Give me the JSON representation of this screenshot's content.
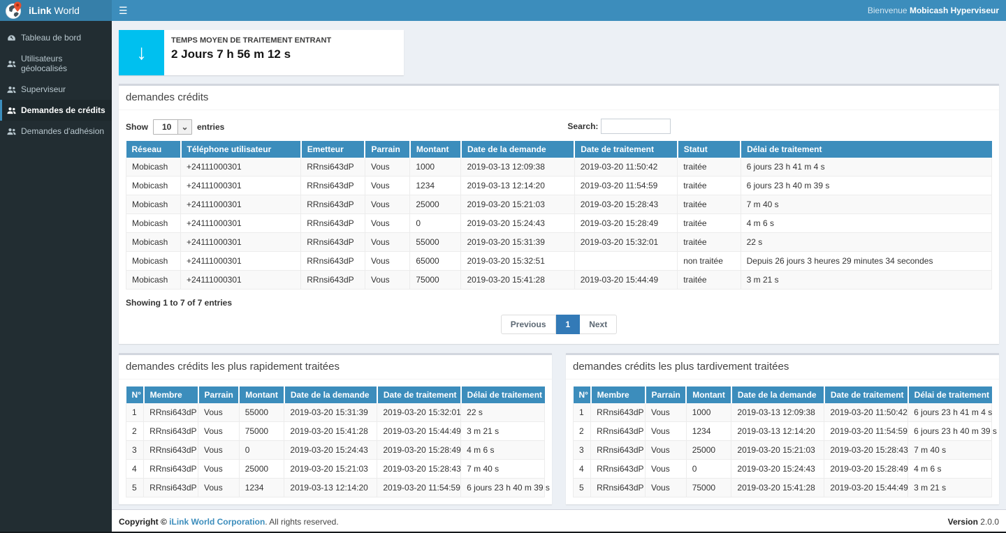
{
  "navbar": {
    "menu_glyph": "☰",
    "welcome_prefix": "Bienvenue",
    "welcome_user": "Mobicash Hyperviseur"
  },
  "sidebar": {
    "brand_bold": "iLink",
    "brand_regular": " World",
    "items": [
      {
        "label": "Tableau de bord",
        "icon": "dashboard-icon",
        "active": false
      },
      {
        "label": "Utilisateurs géolocalisés",
        "icon": "users-icon",
        "active": false
      },
      {
        "label": "Superviseur",
        "icon": "users-icon",
        "active": false
      },
      {
        "label": "Demandes de crédits",
        "icon": "users-icon",
        "active": true
      },
      {
        "label": "Demandes d'adhésion",
        "icon": "users-icon",
        "active": false
      }
    ]
  },
  "stat_card": {
    "label": "TEMPS MOYEN DE TRAITEMENT ENTRANT",
    "value": "2 Jours 7 h 56 m 12 s",
    "icon": "down-arrow-icon",
    "icon_glyph": "↓",
    "icon_bg": "#00c0ef"
  },
  "credits_panel": {
    "title": "demandes crédits",
    "length_menu": {
      "show_label": "Show",
      "selected": "10",
      "entries_label": "entries"
    },
    "search": {
      "label": "Search:",
      "value": ""
    },
    "columns": [
      "Réseau",
      "Téléphone utilisateur",
      "Emetteur",
      "Parrain",
      "Montant",
      "Date de la demande",
      "Date de traitement",
      "Statut",
      "Délai de traitement"
    ],
    "rows": [
      [
        "Mobicash",
        "+24111000301",
        "RRnsi643dP",
        "Vous",
        "1000",
        "2019-03-13 12:09:38",
        "2019-03-20 11:50:42",
        "traitée",
        "6 jours 23 h 41 m 4 s"
      ],
      [
        "Mobicash",
        "+24111000301",
        "RRnsi643dP",
        "Vous",
        "1234",
        "2019-03-13 12:14:20",
        "2019-03-20 11:54:59",
        "traitée",
        "6 jours 23 h 40 m 39 s"
      ],
      [
        "Mobicash",
        "+24111000301",
        "RRnsi643dP",
        "Vous",
        "25000",
        "2019-03-20 15:21:03",
        "2019-03-20 15:28:43",
        "traitée",
        "7 m 40 s"
      ],
      [
        "Mobicash",
        "+24111000301",
        "RRnsi643dP",
        "Vous",
        "0",
        "2019-03-20 15:24:43",
        "2019-03-20 15:28:49",
        "traitée",
        "4 m 6 s"
      ],
      [
        "Mobicash",
        "+24111000301",
        "RRnsi643dP",
        "Vous",
        "55000",
        "2019-03-20 15:31:39",
        "2019-03-20 15:32:01",
        "traitée",
        "22 s"
      ],
      [
        "Mobicash",
        "+24111000301",
        "RRnsi643dP",
        "Vous",
        "65000",
        "2019-03-20 15:32:51",
        "",
        "non traitée",
        "Depuis 26 jours 3 heures 29 minutes 34 secondes"
      ],
      [
        "Mobicash",
        "+24111000301",
        "RRnsi643dP",
        "Vous",
        "75000",
        "2019-03-20 15:41:28",
        "2019-03-20 15:44:49",
        "traitée",
        "3 m 21 s"
      ]
    ],
    "info": "Showing 1 to 7 of 7 entries",
    "pagination": {
      "previous": "Previous",
      "current": "1",
      "next": "Next"
    }
  },
  "fastest_panel": {
    "title": "demandes crédits les plus rapidement traitées",
    "columns": [
      "N°",
      "Membre",
      "Parrain",
      "Montant",
      "Date de la demande",
      "Date de traitement",
      "Délai de traitement"
    ],
    "rows": [
      [
        "1",
        "RRnsi643dP",
        "Vous",
        "55000",
        "2019-03-20 15:31:39",
        "2019-03-20 15:32:01",
        "22 s"
      ],
      [
        "2",
        "RRnsi643dP",
        "Vous",
        "75000",
        "2019-03-20 15:41:28",
        "2019-03-20 15:44:49",
        "3 m 21 s"
      ],
      [
        "3",
        "RRnsi643dP",
        "Vous",
        "0",
        "2019-03-20 15:24:43",
        "2019-03-20 15:28:49",
        "4 m 6 s"
      ],
      [
        "4",
        "RRnsi643dP",
        "Vous",
        "25000",
        "2019-03-20 15:21:03",
        "2019-03-20 15:28:43",
        "7 m 40 s"
      ],
      [
        "5",
        "RRnsi643dP",
        "Vous",
        "1234",
        "2019-03-13 12:14:20",
        "2019-03-20 11:54:59",
        "6 jours 23 h 40 m 39 s"
      ]
    ]
  },
  "slowest_panel": {
    "title": "demandes crédits les plus tardivement traitées",
    "columns": [
      "N°",
      "Membre",
      "Parrain",
      "Montant",
      "Date de la demande",
      "Date de traitement",
      "Délai de traitement"
    ],
    "rows": [
      [
        "1",
        "RRnsi643dP",
        "Vous",
        "1000",
        "2019-03-13 12:09:38",
        "2019-03-20 11:50:42",
        "6 jours 23 h 41 m 4 s"
      ],
      [
        "2",
        "RRnsi643dP",
        "Vous",
        "1234",
        "2019-03-13 12:14:20",
        "2019-03-20 11:54:59",
        "6 jours 23 h 40 m 39 s"
      ],
      [
        "3",
        "RRnsi643dP",
        "Vous",
        "25000",
        "2019-03-20 15:21:03",
        "2019-03-20 15:28:43",
        "7 m 40 s"
      ],
      [
        "4",
        "RRnsi643dP",
        "Vous",
        "0",
        "2019-03-20 15:24:43",
        "2019-03-20 15:28:49",
        "4 m 6 s"
      ],
      [
        "5",
        "RRnsi643dP",
        "Vous",
        "75000",
        "2019-03-20 15:41:28",
        "2019-03-20 15:44:49",
        "3 m 21 s"
      ]
    ]
  },
  "footer": {
    "copyright_prefix": "Copyright © ",
    "company_link": "iLink World Corporation",
    "copyright_suffix": ". All rights reserved.",
    "version_label": "Version",
    "version_value": " 2.0.0"
  },
  "colors": {
    "navbar": "#3c8dbc",
    "logo_bg": "#367fa9",
    "sidebar": "#222d32",
    "sidebar_active_bg": "#1e282c",
    "sidebar_text": "#b8c7ce",
    "table_header": "#3c8dbc",
    "stat_icon_bg": "#00c0ef",
    "pagination_active": "#337ab7",
    "link": "#3c8dbc",
    "content_bg": "#ecf0f5"
  }
}
